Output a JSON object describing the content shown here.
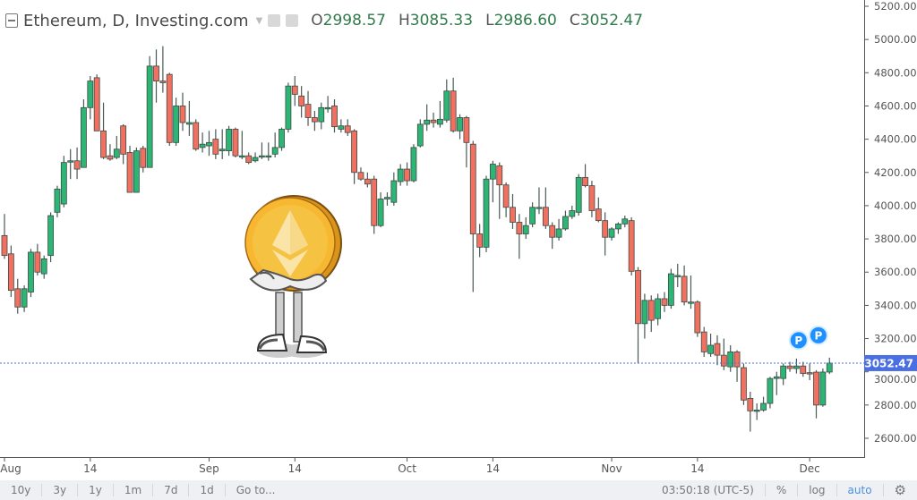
{
  "header": {
    "symbol": "Ethereum, D, Investing.com",
    "open_label": "O",
    "open": "2998.57",
    "high_label": "H",
    "high": "3085.33",
    "low_label": "L",
    "low": "2986.60",
    "close_label": "C",
    "close": "3052.47"
  },
  "toolbar": {
    "ranges": [
      "10y",
      "3y",
      "1y",
      "1m",
      "7d",
      "1d"
    ],
    "goto": "Go to...",
    "time": "03:50:18 (UTC-5)",
    "percent": "%",
    "log": "log",
    "auto": "auto"
  },
  "colors": {
    "up": "#2cb574",
    "down": "#f2705f",
    "price_line": "#4a6fe3",
    "marker": "#1e90ff"
  },
  "chart_data": {
    "type": "candlestick",
    "title": "Ethereum, D, Investing.com",
    "ylim": [
      2550,
      5250
    ],
    "y_ticks": [
      "5200.00",
      "5000.00",
      "4800.00",
      "4600.00",
      "4400.00",
      "4200.00",
      "4000.00",
      "3800.00",
      "3600.00",
      "3400.00",
      "3200.00",
      "3000.00",
      "2800.00",
      "2600.00"
    ],
    "x_ticks": [
      {
        "label": "Aug",
        "index": 0
      },
      {
        "label": "14",
        "index": 13
      },
      {
        "label": "Sep",
        "index": 31
      },
      {
        "label": "14",
        "index": 44
      },
      {
        "label": "Oct",
        "index": 61
      },
      {
        "label": "14",
        "index": 74
      },
      {
        "label": "Nov",
        "index": 92
      },
      {
        "label": "14",
        "index": 105
      },
      {
        "label": "Dec",
        "index": 122
      }
    ],
    "last_price": "3052.47",
    "markers": [
      {
        "label": "P",
        "index": 121,
        "price": 3190
      },
      {
        "label": "P",
        "index": 124,
        "price": 3220
      }
    ],
    "grid": false,
    "candles": [
      [
        "Aug 1",
        3820,
        3950,
        3680,
        3700
      ],
      [
        "Aug 2",
        3710,
        3760,
        3450,
        3490
      ],
      [
        "Aug 3",
        3500,
        3560,
        3350,
        3390
      ],
      [
        "Aug 4",
        3390,
        3520,
        3360,
        3500
      ],
      [
        "Aug 5",
        3480,
        3740,
        3450,
        3720
      ],
      [
        "Aug 6",
        3720,
        3770,
        3580,
        3600
      ],
      [
        "Aug 7",
        3590,
        3700,
        3560,
        3680
      ],
      [
        "Aug 8",
        3700,
        3960,
        3660,
        3940
      ],
      [
        "Aug 9",
        3960,
        4120,
        3930,
        4100
      ],
      [
        "Aug 10",
        4010,
        4300,
        3990,
        4260
      ],
      [
        "Aug 11",
        4270,
        4340,
        4160,
        4270
      ],
      [
        "Aug 12",
        4270,
        4350,
        4160,
        4220
      ],
      [
        "Aug 13",
        4230,
        4640,
        4230,
        4590
      ],
      [
        "Aug 14",
        4590,
        4780,
        4520,
        4750
      ],
      [
        "Aug 15",
        4770,
        4790,
        4450,
        4450
      ],
      [
        "Aug 16",
        4450,
        4620,
        4280,
        4290
      ],
      [
        "Aug 17",
        4300,
        4370,
        4270,
        4280
      ],
      [
        "Aug 18",
        4290,
        4420,
        4280,
        4340
      ],
      [
        "Aug 19",
        4480,
        4490,
        4250,
        4310
      ],
      [
        "Aug 20",
        4320,
        4360,
        4080,
        4080
      ],
      [
        "Aug 21",
        4080,
        4350,
        4080,
        4330
      ],
      [
        "Aug 22",
        4345,
        4360,
        4200,
        4230
      ],
      [
        "Aug 23",
        4230,
        4900,
        4230,
        4840
      ],
      [
        "Aug 24",
        4840,
        4940,
        4620,
        4750
      ],
      [
        "Aug 25",
        4750,
        4960,
        4680,
        4740
      ],
      [
        "Aug 26",
        4790,
        4800,
        4360,
        4380
      ],
      [
        "Aug 27",
        4380,
        4650,
        4360,
        4600
      ],
      [
        "Aug 28",
        4600,
        4680,
        4450,
        4500
      ],
      [
        "Aug 29",
        4490,
        4630,
        4420,
        4500
      ],
      [
        "Aug 30",
        4500,
        4520,
        4330,
        4340
      ],
      [
        "Aug 31",
        4350,
        4440,
        4320,
        4370
      ],
      [
        "Sep 1",
        4360,
        4450,
        4300,
        4380
      ],
      [
        "Sep 2",
        4400,
        4460,
        4280,
        4310
      ],
      [
        "Sep 3",
        4330,
        4460,
        4280,
        4340
      ],
      [
        "Sep 4",
        4330,
        4480,
        4300,
        4460
      ],
      [
        "Sep 5",
        4460,
        4470,
        4290,
        4300
      ],
      [
        "Sep 6",
        4300,
        4450,
        4280,
        4300
      ],
      [
        "Sep 7",
        4300,
        4320,
        4250,
        4260
      ],
      [
        "Sep 8",
        4270,
        4320,
        4260,
        4290
      ],
      [
        "Sep 9",
        4300,
        4380,
        4280,
        4300
      ],
      [
        "Sep 10",
        4300,
        4380,
        4270,
        4300
      ],
      [
        "Sep 11",
        4310,
        4440,
        4290,
        4350
      ],
      [
        "Sep 12",
        4350,
        4470,
        4330,
        4460
      ],
      [
        "Sep 13",
        4460,
        4740,
        4440,
        4720
      ],
      [
        "Sep 14",
        4720,
        4780,
        4600,
        4670
      ],
      [
        "Sep 15",
        4660,
        4720,
        4530,
        4600
      ],
      [
        "Sep 16",
        4610,
        4690,
        4480,
        4530
      ],
      [
        "Sep 17",
        4530,
        4570,
        4450,
        4505
      ],
      [
        "Sep 18",
        4505,
        4620,
        4460,
        4590
      ],
      [
        "Sep 19",
        4590,
        4660,
        4560,
        4590
      ],
      [
        "Sep 20",
        4600,
        4640,
        4440,
        4475
      ],
      [
        "Sep 21",
        4460,
        4520,
        4440,
        4480
      ],
      [
        "Sep 22",
        4480,
        4520,
        4420,
        4440
      ],
      [
        "Sep 23",
        4450,
        4460,
        4130,
        4200
      ],
      [
        "Sep 24",
        4200,
        4230,
        4150,
        4160
      ],
      [
        "Sep 25",
        4160,
        4200,
        4110,
        4130
      ],
      [
        "Sep 26",
        4160,
        4180,
        3830,
        3880
      ],
      [
        "Sep 27",
        3880,
        4080,
        3870,
        4040
      ],
      [
        "Sep 28",
        4040,
        4080,
        4000,
        4050
      ],
      [
        "Sep 29",
        4020,
        4200,
        4000,
        4150
      ],
      [
        "Sep 30",
        4145,
        4250,
        4120,
        4220
      ],
      [
        "Oct 1",
        4220,
        4260,
        4120,
        4150
      ],
      [
        "Oct 2",
        4150,
        4370,
        4140,
        4350
      ],
      [
        "Oct 3",
        4360,
        4520,
        4350,
        4490
      ],
      [
        "Oct 4",
        4490,
        4610,
        4450,
        4515
      ],
      [
        "Oct 5",
        4515,
        4560,
        4470,
        4500
      ],
      [
        "Oct 6",
        4490,
        4630,
        4470,
        4520
      ],
      [
        "Oct 7",
        4515,
        4760,
        4500,
        4690
      ],
      [
        "Oct 8",
        4690,
        4770,
        4440,
        4450
      ],
      [
        "Oct 9",
        4450,
        4550,
        4400,
        4530
      ],
      [
        "Oct 10",
        4530,
        4540,
        4230,
        4380
      ],
      [
        "Oct 11",
        4370,
        4390,
        3480,
        3830
      ],
      [
        "Oct 12",
        3830,
        3890,
        3690,
        3750
      ],
      [
        "Oct 13",
        3750,
        4180,
        3720,
        4160
      ],
      [
        "Oct 14",
        4160,
        4270,
        4020,
        4250
      ],
      [
        "Oct 15",
        4240,
        4260,
        3920,
        4125
      ],
      [
        "Oct 16",
        4125,
        4140,
        3930,
        3990
      ],
      [
        "Oct 17",
        3990,
        4070,
        3860,
        3900
      ],
      [
        "Oct 18",
        3900,
        3950,
        3680,
        3830
      ],
      [
        "Oct 19",
        3830,
        3930,
        3800,
        3880
      ],
      [
        "Oct 20",
        3890,
        4020,
        3870,
        3990
      ],
      [
        "Oct 21",
        3990,
        4110,
        3950,
        3990
      ],
      [
        "Oct 22",
        3990,
        4110,
        3860,
        3880
      ],
      [
        "Oct 23",
        3880,
        3900,
        3740,
        3810
      ],
      [
        "Oct 24",
        3810,
        3920,
        3790,
        3860
      ],
      [
        "Oct 25",
        3860,
        3970,
        3850,
        3935
      ],
      [
        "Oct 26",
        3935,
        4000,
        3920,
        3970
      ],
      [
        "Oct 27",
        3960,
        4190,
        3940,
        4170
      ],
      [
        "Oct 28",
        4170,
        4250,
        4110,
        4120
      ],
      [
        "Oct 29",
        4120,
        4150,
        3930,
        3970
      ],
      [
        "Oct 30",
        3980,
        4050,
        3900,
        3910
      ],
      [
        "Oct 31",
        3910,
        3960,
        3700,
        3810
      ],
      [
        "Nov 1",
        3810,
        3870,
        3790,
        3860
      ],
      [
        "Nov 2",
        3860,
        3900,
        3830,
        3890
      ],
      [
        "Nov 3",
        3890,
        3940,
        3870,
        3920
      ],
      [
        "Nov 4",
        3910,
        3930,
        3580,
        3605
      ],
      [
        "Nov 5",
        3610,
        3630,
        3050,
        3290
      ],
      [
        "Nov 6",
        3290,
        3470,
        3200,
        3430
      ],
      [
        "Nov 7",
        3430,
        3460,
        3240,
        3310
      ],
      [
        "Nov 8",
        3320,
        3470,
        3280,
        3440
      ],
      [
        "Nov 9",
        3440,
        3480,
        3360,
        3400
      ],
      [
        "Nov 10",
        3400,
        3620,
        3380,
        3590
      ],
      [
        "Nov 11",
        3580,
        3650,
        3510,
        3580
      ],
      [
        "Nov 12",
        3575,
        3640,
        3400,
        3420
      ],
      [
        "Nov 13",
        3420,
        3580,
        3380,
        3420
      ],
      [
        "Nov 14",
        3420,
        3430,
        3210,
        3235
      ],
      [
        "Nov 15",
        3240,
        3270,
        3090,
        3120
      ],
      [
        "Nov 16",
        3110,
        3230,
        3090,
        3160
      ],
      [
        "Nov 17",
        3170,
        3220,
        3040,
        3100
      ],
      [
        "Nov 18",
        3100,
        3200,
        3010,
        3035
      ],
      [
        "Nov 19",
        3030,
        3160,
        3000,
        3120
      ],
      [
        "Nov 20",
        3120,
        3130,
        2940,
        3030
      ],
      [
        "Nov 21",
        3025,
        3050,
        2800,
        2830
      ],
      [
        "Nov 22",
        2840,
        2880,
        2640,
        2765
      ],
      [
        "Nov 23",
        2770,
        2810,
        2710,
        2770
      ],
      [
        "Nov 24",
        2770,
        2850,
        2760,
        2810
      ],
      [
        "Nov 25",
        2810,
        2970,
        2780,
        2960
      ],
      [
        "Nov 26",
        2960,
        3000,
        2860,
        2970
      ],
      [
        "Nov 27",
        2960,
        3050,
        2920,
        3035
      ],
      [
        "Nov 28",
        3035,
        3060,
        3000,
        3020
      ],
      [
        "Nov 29",
        3020,
        3080,
        2990,
        3035
      ],
      [
        "Nov 30",
        3035,
        3060,
        2970,
        2990
      ],
      [
        "Dec 1",
        2995,
        3050,
        2950,
        2990
      ],
      [
        "Dec 2",
        2998,
        3010,
        2720,
        2800
      ],
      [
        "Dec 3",
        2800,
        3020,
        2790,
        2998.57
      ],
      [
        "Dec 4",
        2998.57,
        3085.33,
        2986.6,
        3052.47
      ]
    ]
  }
}
